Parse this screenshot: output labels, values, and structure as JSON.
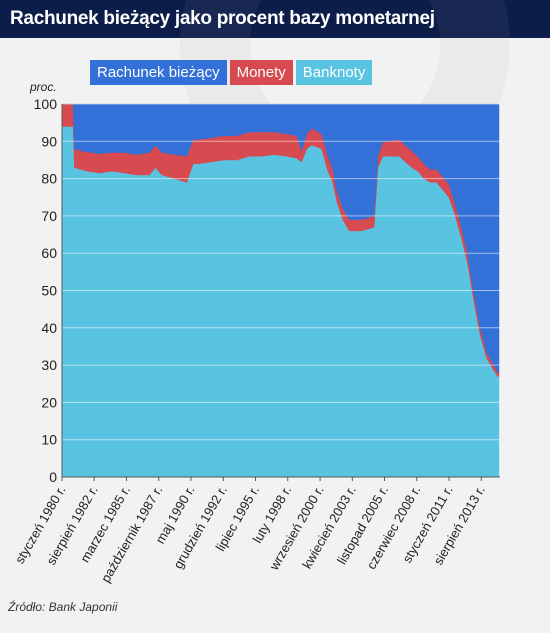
{
  "header": {
    "title": "Rachunek bieżący jako procent bazy monetarnej"
  },
  "legend": [
    {
      "label": "Rachunek bieżący",
      "color": "#3370d8"
    },
    {
      "label": "Monety",
      "color": "#d64a50"
    },
    {
      "label": "Banknoty",
      "color": "#59c4e2"
    }
  ],
  "source": "Źródło: Bank Japonii",
  "chart_data": {
    "type": "area",
    "stacked": true,
    "title": "Rachunek bieżący jako procent bazy monetarnej",
    "ylabel": "proc.",
    "xlabel": "",
    "ylim": [
      0,
      100
    ],
    "yticks": [
      0,
      10,
      20,
      30,
      40,
      50,
      60,
      70,
      80,
      90,
      100
    ],
    "xlim": [
      1980.0,
      2015.08
    ],
    "xtick_labels": [
      {
        "t": 1980.0,
        "label": "styczeń 1980 r."
      },
      {
        "t": 1982.58,
        "label": "sierpień 1982 r."
      },
      {
        "t": 1985.17,
        "label": "marzec 1985 r."
      },
      {
        "t": 1987.75,
        "label": "październik 1987 r."
      },
      {
        "t": 1990.33,
        "label": "maj 1990 r."
      },
      {
        "t": 1992.92,
        "label": "grudzień 1992 r."
      },
      {
        "t": 1995.5,
        "label": "lipiec 1995 r."
      },
      {
        "t": 1998.08,
        "label": "luty 1998 r."
      },
      {
        "t": 2000.67,
        "label": "wrzesień 2000 r."
      },
      {
        "t": 2003.25,
        "label": "kwiecień 2003 r."
      },
      {
        "t": 2005.83,
        "label": "listopad 2005 r."
      },
      {
        "t": 2008.42,
        "label": "czerwiec 2008 r."
      },
      {
        "t": 2011.0,
        "label": "styczeń 2011 r."
      },
      {
        "t": 2013.58,
        "label": "sierpień 2013 r."
      }
    ],
    "grid": true,
    "legend_position": "top-left",
    "x": [
      1980.0,
      1980.9,
      1981.0,
      1981.5,
      1982.0,
      1983.0,
      1984.0,
      1985.0,
      1986.0,
      1987.0,
      1987.5,
      1988.0,
      1989.0,
      1990.0,
      1990.5,
      1991.0,
      1992.0,
      1993.0,
      1994.0,
      1995.0,
      1996.0,
      1997.0,
      1998.0,
      1998.8,
      1999.2,
      1999.6,
      2000.0,
      2000.8,
      2001.3,
      2001.7,
      2002.0,
      2002.5,
      2003.0,
      2003.5,
      2004.0,
      2004.5,
      2005.0,
      2005.3,
      2005.7,
      2006.0,
      2007.0,
      2008.0,
      2008.5,
      2009.0,
      2009.5,
      2010.0,
      2011.0,
      2011.5,
      2012.0,
      2012.5,
      2013.0,
      2013.5,
      2014.0,
      2014.5,
      2014.9,
      2015.0
    ],
    "series": [
      {
        "name": "Banknoty",
        "values": [
          94,
          94,
          83,
          82.5,
          82,
          81.5,
          82,
          81.5,
          81,
          81,
          83,
          81,
          80,
          79,
          84,
          84,
          84.5,
          85,
          85,
          86,
          86,
          86.5,
          86,
          85.5,
          84.5,
          88,
          89,
          88,
          82,
          79,
          74,
          69,
          66,
          66,
          66,
          66.5,
          67,
          83,
          86,
          86,
          86,
          83,
          82,
          80,
          79,
          79,
          75,
          70,
          64,
          57,
          47,
          38,
          32,
          29,
          27,
          27
        ]
      },
      {
        "name": "Monety",
        "values": [
          6,
          6,
          5,
          5,
          5.2,
          5.2,
          5,
          5.5,
          5.5,
          6,
          6,
          6,
          6.5,
          7,
          6.5,
          6.5,
          6.5,
          6.5,
          6.5,
          6.5,
          6.5,
          6,
          6,
          6,
          3,
          4,
          4.5,
          4,
          4,
          3.5,
          3,
          3,
          3,
          3,
          3,
          3,
          3,
          3,
          4,
          4,
          4.5,
          4.5,
          4,
          4,
          3.5,
          3.5,
          3.5,
          3,
          3,
          2.5,
          2,
          2,
          1.5,
          1.5,
          1,
          1
        ]
      },
      {
        "name": "Rachunek bieżący",
        "values": [
          0,
          0,
          12,
          12.5,
          12.8,
          13.3,
          13,
          13,
          13.5,
          13,
          11,
          13,
          13.5,
          14,
          9.5,
          9.5,
          9,
          8.5,
          8.5,
          7.5,
          7.5,
          7.5,
          8,
          8.5,
          12.5,
          8,
          6.5,
          8,
          14,
          17.5,
          23,
          28,
          31,
          31,
          31,
          30.5,
          30,
          14,
          10,
          10,
          9.5,
          12.5,
          14,
          16,
          17.5,
          17.5,
          21.5,
          27,
          33,
          40.5,
          51,
          60,
          66.5,
          69.5,
          72,
          72
        ]
      }
    ]
  }
}
